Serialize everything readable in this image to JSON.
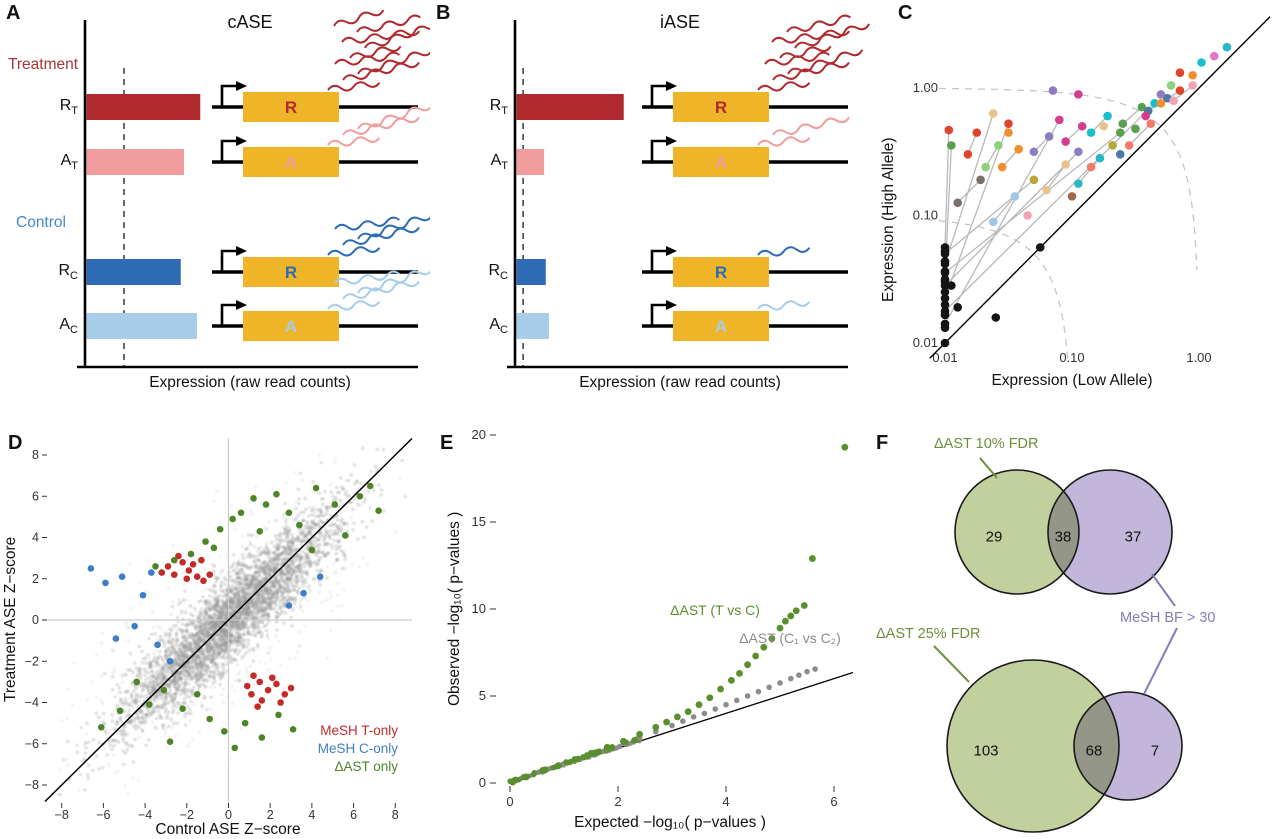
{
  "chart_data": [
    {
      "panel": "A",
      "type": "diagram",
      "title": "cASE",
      "group_labels": [
        {
          "text": "Treatment",
          "color": "#a93438"
        },
        {
          "text": "Control",
          "color": "#4a86c8"
        }
      ],
      "xlabel": "Expression (raw read counts)",
      "gene_box_color": "#f0b429",
      "dashed_frac": 0.12,
      "rows": [
        {
          "allele": "R",
          "condition": "T",
          "bar_frac": 0.35,
          "color": "#b0292e",
          "transcripts": 9
        },
        {
          "allele": "A",
          "condition": "T",
          "bar_frac": 0.3,
          "color": "#f29d9d",
          "transcripts": 3
        },
        {
          "allele": "R",
          "condition": "C",
          "bar_frac": 0.29,
          "color": "#2d6cb5",
          "transcripts": 4
        },
        {
          "allele": "A",
          "condition": "C",
          "bar_frac": 0.34,
          "color": "#a8cde8",
          "transcripts": 4
        }
      ]
    },
    {
      "panel": "B",
      "type": "diagram",
      "title": "iASE",
      "xlabel": "Expression (raw read counts)",
      "gene_box_color": "#f0b429",
      "dashed_frac": 0.025,
      "rows": [
        {
          "allele": "R",
          "condition": "T",
          "bar_frac": 0.33,
          "color": "#b0292e",
          "transcripts": 8
        },
        {
          "allele": "A",
          "condition": "T",
          "bar_frac": 0.085,
          "color": "#f29d9d",
          "transcripts": 2
        },
        {
          "allele": "R",
          "condition": "C",
          "bar_frac": 0.09,
          "color": "#2d6cb5",
          "transcripts": 1
        },
        {
          "allele": "A",
          "condition": "C",
          "bar_frac": 0.1,
          "color": "#a8cde8",
          "transcripts": 1
        }
      ]
    },
    {
      "panel": "C",
      "type": "scatter",
      "scale": "log10",
      "xlabel": "Expression (Low Allele)",
      "ylabel": "Expression (High Allele)",
      "xticks": [
        "0.01",
        "0.10",
        "1.00"
      ],
      "yticks": [
        "0.01",
        "0.10",
        "1.00"
      ],
      "tick_logs": [
        -2,
        -1,
        0
      ],
      "identity_line": true,
      "dashed_sum_arcs": [
        1.0,
        0.1
      ],
      "pairs": [
        [
          -2,
          -1.3,
          -1.3,
          -0.72,
          "#141414",
          "#b5a838"
        ],
        [
          -2,
          -1.45,
          -0.62,
          -0.35,
          "#141414",
          "#59a14f"
        ],
        [
          -2,
          -1.55,
          -0.95,
          -0.5,
          "#141414",
          "#8f7bbf"
        ],
        [
          -2,
          -1.65,
          -1.5,
          -0.28,
          "#141414",
          "#e0452b"
        ],
        [
          -2,
          -1.75,
          -0.35,
          -0.12,
          "#141414",
          "#17becf"
        ],
        [
          -2,
          -1.85,
          -1.1,
          -0.25,
          "#141414",
          "#d43d8f"
        ],
        [
          -2,
          -1.38,
          -1.62,
          -0.2,
          "#141414",
          "#e8c28a"
        ],
        [
          -2,
          -1.25,
          -1.97,
          -0.33,
          "#141414",
          "#e0452b"
        ],
        [
          -2,
          -1.5,
          -1.95,
          -0.45,
          "#141414",
          "#59a14f"
        ],
        [
          -1.82,
          -0.52,
          -1.75,
          -0.35,
          "#e0452b",
          "#e0452b"
        ],
        [
          -1.55,
          -0.62,
          -1.42,
          -0.48,
          "#f28e2b",
          "#f28e2b"
        ],
        [
          -1.3,
          -0.5,
          -1.18,
          -0.38,
          "#8f7bbf",
          "#8f7bbf"
        ],
        [
          -1.05,
          -0.42,
          -0.92,
          -0.3,
          "#d43d8f",
          "#d43d8f"
        ],
        [
          -0.85,
          -0.35,
          -0.72,
          -0.22,
          "#17becf",
          "#17becf"
        ],
        [
          -0.6,
          -0.28,
          -0.45,
          -0.15,
          "#59a14f",
          "#59a14f"
        ],
        [
          -0.4,
          -0.18,
          -0.25,
          -0.08,
          "#4e79a7",
          "#4e79a7"
        ],
        [
          -0.3,
          -0.12,
          -0.15,
          -0.02,
          "#f28e2b",
          "#e0452b"
        ],
        [
          -1.2,
          -0.8,
          -1.05,
          -0.6,
          "#e8c28a",
          "#e8c28a"
        ],
        [
          -0.95,
          -0.75,
          -0.78,
          -0.55,
          "#2ab7ca",
          "#2ab7ca"
        ],
        [
          -1.62,
          -1.05,
          -1.45,
          -0.85,
          "#9ec8e4",
          "#9ec8e4"
        ],
        [
          -0.55,
          -0.45,
          -0.38,
          -0.28,
          "#f4796b",
          "#f4796b"
        ],
        [
          -0.2,
          -0.1,
          -0.05,
          0.02,
          "#f1a2b3",
          "#f1a2b3"
        ],
        [
          -1.9,
          -0.9,
          -1.72,
          -0.72,
          "#79706e",
          "#79706e"
        ],
        [
          -1.68,
          -0.62,
          -1.58,
          -0.45,
          "#8cd17d",
          "#8cd17d"
        ]
      ],
      "points": [
        [
          -0.15,
          0.12,
          "#e0452b"
        ],
        [
          0.02,
          0.2,
          "#17becf"
        ],
        [
          0.12,
          0.25,
          "#e377c2"
        ],
        [
          -0.05,
          0.1,
          "#f28e2b"
        ],
        [
          -0.3,
          -0.05,
          "#8f7bbf"
        ],
        [
          -0.5,
          -0.32,
          "#59a14f"
        ],
        [
          -0.68,
          -0.45,
          "#b5a838"
        ],
        [
          -0.85,
          -0.62,
          "#f4796b"
        ],
        [
          -1.0,
          -0.85,
          "#9c6b4e"
        ],
        [
          -0.62,
          -0.52,
          "#4e79a7"
        ],
        [
          -0.42,
          -0.22,
          "#d43d8f"
        ],
        [
          -0.22,
          0.02,
          "#8cd17d"
        ],
        [
          0.22,
          0.32,
          "#2ab7ca"
        ],
        [
          -1.35,
          -1.0,
          "#f1a2b3"
        ],
        [
          -0.75,
          -0.3,
          "#e8c28a"
        ],
        [
          -0.95,
          -0.05,
          "#d43d8f"
        ],
        [
          -1.5,
          -0.35,
          "#f28e2b"
        ],
        [
          -1.15,
          -0.02,
          "#8f7bbf"
        ],
        [
          -2,
          -2,
          "#141414"
        ],
        [
          -2,
          -1.28,
          "#141414"
        ],
        [
          -2,
          -1.36,
          "#141414"
        ],
        [
          -2,
          -1.44,
          "#141414"
        ],
        [
          -2,
          -1.52,
          "#141414"
        ],
        [
          -2,
          -1.6,
          "#141414"
        ],
        [
          -2,
          -1.7,
          "#141414"
        ],
        [
          -2,
          -1.78,
          "#141414"
        ],
        [
          -2,
          -1.88,
          "#141414"
        ],
        [
          -1.95,
          -1.55,
          "#141414"
        ],
        [
          -1.9,
          -1.72,
          "#141414"
        ],
        [
          -1.25,
          -1.25,
          "#141414"
        ],
        [
          -1.6,
          -1.8,
          "#141414"
        ]
      ]
    },
    {
      "panel": "D",
      "type": "scatter",
      "xlabel": "Control ASE Z−score",
      "ylabel": "Treatment ASE Z−score",
      "ticks": [
        -8,
        -6,
        -4,
        -2,
        0,
        2,
        4,
        6,
        8
      ],
      "xlim": [
        -8.8,
        8.8
      ],
      "ylim": [
        -8.8,
        8.8
      ],
      "cloud": {
        "n": 3600,
        "sd_along": 3.6,
        "sd_across": 0.75,
        "outlier_n": 600,
        "outlier_sd_along": 4.5,
        "outlier_sd_across": 1.8,
        "seed": 11,
        "color": "#9a9a9a"
      },
      "series": [
        {
          "name": "MeSH T-only",
          "color": "#c42a28",
          "points": [
            [
              -2.6,
              2.2
            ],
            [
              -2.2,
              2.8
            ],
            [
              -1.9,
              2.4
            ],
            [
              -1.5,
              2.1
            ],
            [
              -2.9,
              2.6
            ],
            [
              -1.2,
              1.9
            ],
            [
              -2.4,
              3.1
            ],
            [
              -1.7,
              2.7
            ],
            [
              -0.9,
              2.2
            ],
            [
              -1.3,
              2.9
            ],
            [
              -3.2,
              2.3
            ],
            [
              -2.0,
              2.0
            ],
            [
              1.5,
              -3.0
            ],
            [
              1.9,
              -3.4
            ],
            [
              2.3,
              -3.1
            ],
            [
              1.2,
              -2.7
            ],
            [
              2.7,
              -3.6
            ],
            [
              1.6,
              -3.9
            ],
            [
              0.9,
              -3.2
            ],
            [
              2.1,
              -2.8
            ],
            [
              3.0,
              -3.3
            ],
            [
              1.4,
              -4.2
            ],
            [
              2.5,
              -4.0
            ],
            [
              1.1,
              -3.6
            ]
          ]
        },
        {
          "name": "MeSH C-only",
          "color": "#3f7ec6",
          "points": [
            [
              -6.6,
              2.5
            ],
            [
              -5.9,
              1.8
            ],
            [
              -5.1,
              2.1
            ],
            [
              -4.5,
              -0.3
            ],
            [
              -3.4,
              -1.2
            ],
            [
              -4.1,
              1.2
            ],
            [
              4.4,
              2.1
            ],
            [
              2.9,
              0.7
            ],
            [
              -3.7,
              2.3
            ],
            [
              -5.4,
              -0.9
            ],
            [
              3.6,
              1.3
            ],
            [
              -2.8,
              -2.0
            ]
          ]
        },
        {
          "name": "ΔAST only",
          "color": "#4f8526",
          "points": [
            [
              1.2,
              5.9
            ],
            [
              0.6,
              5.2
            ],
            [
              1.8,
              5.6
            ],
            [
              2.3,
              6.1
            ],
            [
              -0.4,
              4.4
            ],
            [
              -1.1,
              3.8
            ],
            [
              -1.8,
              3.2
            ],
            [
              0.2,
              4.9
            ],
            [
              2.9,
              5.2
            ],
            [
              3.4,
              4.6
            ],
            [
              4.2,
              6.4
            ],
            [
              5.1,
              5.6
            ],
            [
              6.3,
              6.0
            ],
            [
              -2.6,
              2.9
            ],
            [
              -0.7,
              3.5
            ],
            [
              1.5,
              4.3
            ],
            [
              -1.5,
              -3.6
            ],
            [
              -2.2,
              -4.3
            ],
            [
              -0.9,
              -4.8
            ],
            [
              -0.2,
              -5.4
            ],
            [
              0.8,
              -5.0
            ],
            [
              1.6,
              -5.7
            ],
            [
              -3.1,
              -3.4
            ],
            [
              -3.8,
              -4.1
            ],
            [
              -4.4,
              -3.0
            ],
            [
              2.4,
              -4.6
            ],
            [
              3.1,
              -5.3
            ],
            [
              -2.8,
              -5.9
            ],
            [
              -5.2,
              -4.4
            ],
            [
              4.0,
              3.4
            ],
            [
              5.6,
              4.1
            ],
            [
              -6.1,
              -5.2
            ],
            [
              0.3,
              -6.2
            ],
            [
              -3.5,
              2.6
            ],
            [
              7.2,
              5.3
            ],
            [
              6.8,
              6.5
            ]
          ]
        }
      ]
    },
    {
      "panel": "E",
      "type": "scatter",
      "xlabel": "Expected −log₁₀( p−values )",
      "ylabel": "Observed −log₁₀( p−values )",
      "xticks": [
        0,
        2,
        4,
        6
      ],
      "yticks": [
        0,
        5,
        10,
        15,
        20
      ],
      "identity_line": true,
      "dense": {
        "n": 60,
        "max_x": 2.4,
        "seed": 5
      },
      "series": [
        {
          "name": "ΔAST (T vs C)",
          "color": "#5a8f2d",
          "points": [
            [
              0.05,
              0.05
            ],
            [
              0.3,
              0.35
            ],
            [
              0.6,
              0.7
            ],
            [
              0.9,
              1.0
            ],
            [
              1.2,
              1.35
            ],
            [
              1.5,
              1.7
            ],
            [
              1.8,
              2.05
            ],
            [
              2.1,
              2.4
            ],
            [
              2.4,
              2.8
            ],
            [
              2.7,
              3.2
            ],
            [
              2.9,
              3.5
            ],
            [
              3.1,
              3.8
            ],
            [
              3.3,
              4.1
            ],
            [
              3.5,
              4.5
            ],
            [
              3.7,
              4.9
            ],
            [
              3.9,
              5.4
            ],
            [
              4.1,
              5.9
            ],
            [
              4.25,
              6.3
            ],
            [
              4.4,
              6.8
            ],
            [
              4.55,
              7.3
            ],
            [
              4.7,
              7.8
            ],
            [
              4.85,
              8.3
            ],
            [
              5.0,
              8.9
            ],
            [
              5.1,
              9.3
            ],
            [
              5.2,
              9.6
            ],
            [
              5.3,
              9.9
            ],
            [
              5.45,
              10.2
            ],
            [
              5.6,
              12.9
            ],
            [
              6.2,
              19.3
            ]
          ]
        },
        {
          "name": "ΔAST (C₁ vs C₂)",
          "color": "#8c8c8c",
          "points": [
            [
              0.05,
              0.05
            ],
            [
              0.3,
              0.32
            ],
            [
              0.6,
              0.65
            ],
            [
              0.9,
              0.98
            ],
            [
              1.2,
              1.3
            ],
            [
              1.5,
              1.62
            ],
            [
              1.8,
              1.95
            ],
            [
              2.1,
              2.28
            ],
            [
              2.4,
              2.6
            ],
            [
              2.7,
              2.95
            ],
            [
              3.0,
              3.3
            ],
            [
              3.2,
              3.55
            ],
            [
              3.4,
              3.8
            ],
            [
              3.6,
              4.0
            ],
            [
              3.8,
              4.25
            ],
            [
              4.0,
              4.5
            ],
            [
              4.2,
              4.75
            ],
            [
              4.4,
              5.0
            ],
            [
              4.6,
              5.25
            ],
            [
              4.8,
              5.5
            ],
            [
              5.0,
              5.75
            ],
            [
              5.2,
              6.0
            ],
            [
              5.35,
              6.2
            ],
            [
              5.5,
              6.4
            ],
            [
              5.65,
              6.55
            ]
          ]
        }
      ]
    },
    {
      "panel": "F",
      "type": "venn",
      "left_fill": "#b9c98f",
      "right_fill": "#b4a7d2",
      "diagrams": [
        {
          "label": "ΔAST 10% FDR",
          "label_color": "#6d8f3a",
          "right_label": "MeSH BF > 30",
          "right_label_color": "#8879b8",
          "left_only": 29,
          "overlap": 38,
          "right_only": 37
        },
        {
          "label": "ΔAST 25% FDR",
          "label_color": "#6d8f3a",
          "left_only": 103,
          "overlap": 68,
          "right_only": 7
        }
      ]
    }
  ]
}
